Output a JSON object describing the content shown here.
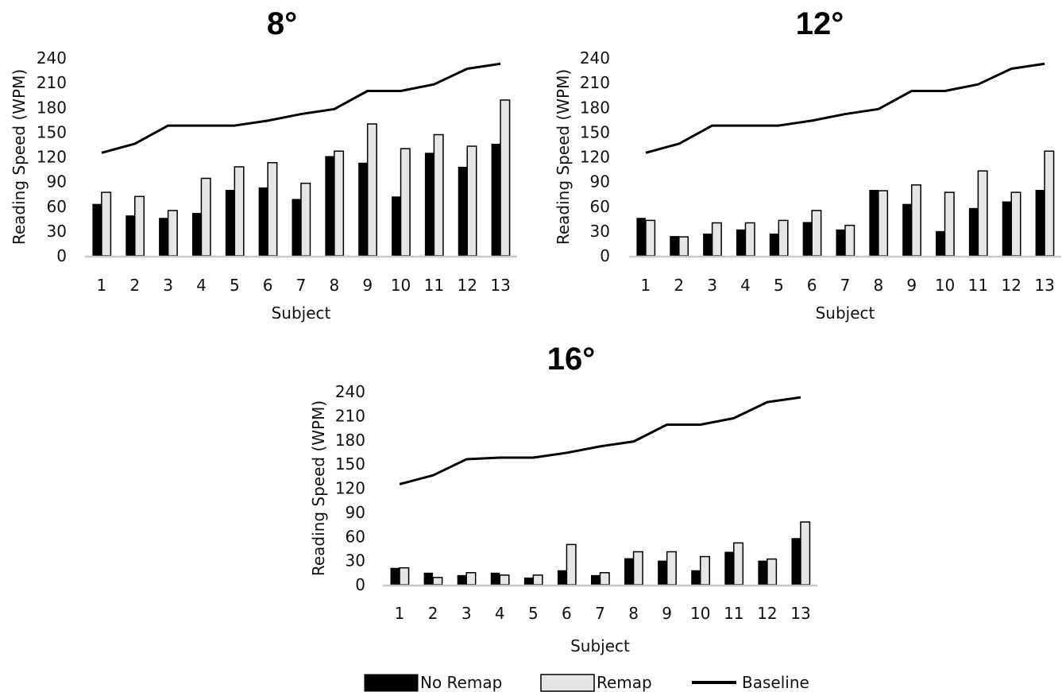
{
  "chart_data": [
    {
      "type": "bar",
      "title": "8°",
      "xlabel": "Subject",
      "ylabel": "Reading Speed (WPM)",
      "ylim": [
        0,
        240
      ],
      "yticks": [
        0,
        30,
        60,
        90,
        120,
        150,
        180,
        210,
        240
      ],
      "categories": [
        "1",
        "2",
        "3",
        "4",
        "5",
        "6",
        "7",
        "8",
        "9",
        "10",
        "11",
        "12",
        "13"
      ],
      "grid": false,
      "series": [
        {
          "name": "No Remap",
          "type": "bar",
          "color": "#000000",
          "values": [
            63,
            49,
            46,
            52,
            80,
            83,
            69,
            121,
            113,
            72,
            125,
            108,
            136
          ]
        },
        {
          "name": "Remap",
          "type": "bar",
          "color": "#e6e6e6",
          "values": [
            77,
            72,
            55,
            94,
            108,
            113,
            88,
            127,
            160,
            130,
            147,
            133,
            189
          ]
        },
        {
          "name": "Baseline",
          "type": "line",
          "color": "#000000",
          "values": [
            125,
            136,
            158,
            158,
            158,
            164,
            172,
            178,
            200,
            200,
            208,
            227,
            233
          ]
        }
      ]
    },
    {
      "type": "bar",
      "title": "12°",
      "xlabel": "Subject",
      "ylabel": "Reading Speed (WPM)",
      "ylim": [
        0,
        240
      ],
      "yticks": [
        0,
        30,
        60,
        90,
        120,
        150,
        180,
        210,
        240
      ],
      "categories": [
        "1",
        "2",
        "3",
        "4",
        "5",
        "6",
        "7",
        "8",
        "9",
        "10",
        "11",
        "12",
        "13"
      ],
      "grid": false,
      "series": [
        {
          "name": "No Remap",
          "type": "bar",
          "color": "#000000",
          "values": [
            46,
            24,
            27,
            32,
            27,
            41,
            32,
            80,
            63,
            30,
            58,
            66,
            80
          ]
        },
        {
          "name": "Remap",
          "type": "bar",
          "color": "#e6e6e6",
          "values": [
            43,
            23,
            40,
            40,
            43,
            55,
            37,
            79,
            86,
            77,
            103,
            77,
            127
          ]
        },
        {
          "name": "Baseline",
          "type": "line",
          "color": "#000000",
          "values": [
            125,
            136,
            158,
            158,
            158,
            164,
            172,
            178,
            200,
            200,
            208,
            227,
            233
          ]
        }
      ]
    },
    {
      "type": "bar",
      "title": "16°",
      "xlabel": "Subject",
      "ylabel": "Reading Speed (WPM)",
      "ylim": [
        0,
        240
      ],
      "yticks": [
        0,
        30,
        60,
        90,
        120,
        150,
        180,
        210,
        240
      ],
      "categories": [
        "1",
        "2",
        "3",
        "4",
        "5",
        "6",
        "7",
        "8",
        "9",
        "10",
        "11",
        "12",
        "13"
      ],
      "grid": false,
      "series": [
        {
          "name": "No Remap",
          "type": "bar",
          "color": "#000000",
          "values": [
            21,
            15,
            12,
            15,
            9,
            18,
            12,
            33,
            30,
            18,
            41,
            30,
            58
          ]
        },
        {
          "name": "Remap",
          "type": "bar",
          "color": "#e6e6e6",
          "values": [
            21,
            9,
            15,
            12,
            12,
            50,
            15,
            41,
            41,
            35,
            52,
            32,
            78
          ]
        },
        {
          "name": "Baseline",
          "type": "line",
          "color": "#000000",
          "values": [
            125,
            136,
            156,
            158,
            158,
            164,
            172,
            178,
            199,
            199,
            207,
            227,
            233
          ]
        }
      ]
    }
  ],
  "legend": {
    "items": [
      {
        "label": "No Remap",
        "swatch": "bar",
        "color": "#000000"
      },
      {
        "label": "Remap",
        "swatch": "bar",
        "color": "#e6e6e6"
      },
      {
        "label": "Baseline",
        "swatch": "line",
        "color": "#000000"
      }
    ]
  }
}
